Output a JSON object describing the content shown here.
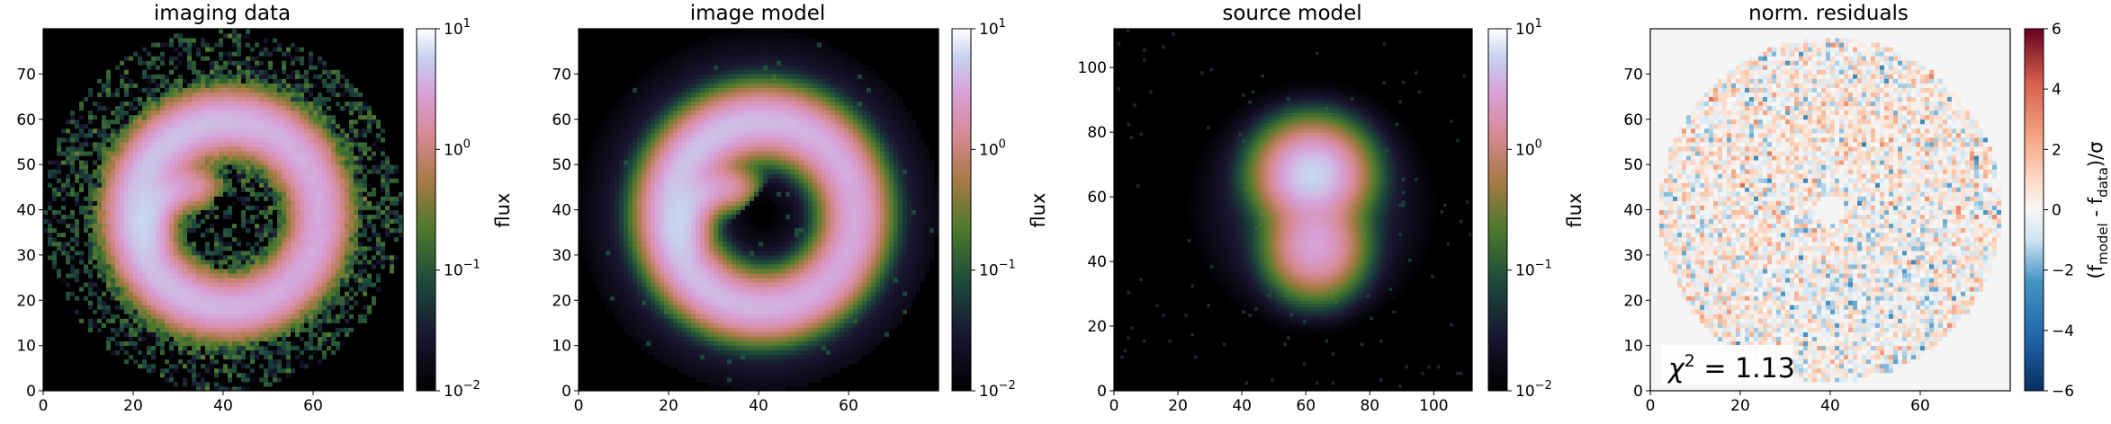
{
  "chart_data": [
    {
      "type": "heatmap",
      "title": "imaging data",
      "xlim": [
        0,
        80
      ],
      "ylim": [
        0,
        80
      ],
      "xticks": [
        "0",
        "20",
        "40",
        "60"
      ],
      "yticks": [
        "0",
        "10",
        "20",
        "30",
        "40",
        "50",
        "60",
        "70"
      ],
      "colormap": "cubehelix",
      "color_scale": "log",
      "colorbar": {
        "label": "flux",
        "min": 0.01,
        "max": 10,
        "ticks": [
          {
            "base": "10",
            "exp": "1"
          },
          {
            "base": "10",
            "exp": "0"
          },
          {
            "base": "10",
            "exp": "−1"
          },
          {
            "base": "10",
            "exp": "−2"
          }
        ]
      },
      "structure": "Einstein ring (noisy), radius ~20 px centred near (40,40), with inner counter-arc",
      "grid": false
    },
    {
      "type": "heatmap",
      "title": "image model",
      "xlim": [
        0,
        80
      ],
      "ylim": [
        0,
        80
      ],
      "xticks": [
        "0",
        "20",
        "40",
        "60"
      ],
      "yticks": [
        "0",
        "10",
        "20",
        "30",
        "40",
        "50",
        "60",
        "70"
      ],
      "colormap": "cubehelix",
      "color_scale": "log",
      "colorbar": {
        "label": "flux",
        "min": 0.01,
        "max": 10,
        "ticks": [
          {
            "base": "10",
            "exp": "1"
          },
          {
            "base": "10",
            "exp": "0"
          },
          {
            "base": "10",
            "exp": "−1"
          },
          {
            "base": "10",
            "exp": "−2"
          }
        ]
      },
      "structure": "smooth model of the Einstein ring",
      "grid": false
    },
    {
      "type": "heatmap",
      "title": "source model",
      "xlim": [
        0,
        112
      ],
      "ylim": [
        0,
        112
      ],
      "xticks": [
        "0",
        "20",
        "40",
        "60",
        "80",
        "100"
      ],
      "yticks": [
        "0",
        "20",
        "40",
        "60",
        "80",
        "100"
      ],
      "colormap": "cubehelix",
      "color_scale": "log",
      "colorbar": {
        "label": "flux",
        "min": 0.01,
        "max": 10,
        "ticks": [
          {
            "base": "10",
            "exp": "1"
          },
          {
            "base": "10",
            "exp": "0"
          },
          {
            "base": "10",
            "exp": "−1"
          },
          {
            "base": "10",
            "exp": "−2"
          }
        ]
      },
      "structure": "two bright blobs near (62,67) and (63,45)",
      "grid": false
    },
    {
      "type": "heatmap",
      "title": "norm. residuals",
      "xlim": [
        0,
        80
      ],
      "ylim": [
        0,
        80
      ],
      "xticks": [
        "0",
        "20",
        "40",
        "60"
      ],
      "yticks": [
        "0",
        "10",
        "20",
        "30",
        "40",
        "50",
        "60",
        "70"
      ],
      "colormap": "RdBu_r",
      "color_scale": "linear",
      "colorbar": {
        "label_parts": [
          "(f",
          "model",
          " - f",
          "data",
          ")/σ"
        ],
        "min": -6,
        "max": 6,
        "ticks": [
          "6",
          "4",
          "2",
          "0",
          "−2",
          "−4",
          "−6"
        ]
      },
      "annotation": {
        "lhs": "χ",
        "exp": "2",
        "rhs": " = 1.13"
      },
      "grid": false
    }
  ]
}
